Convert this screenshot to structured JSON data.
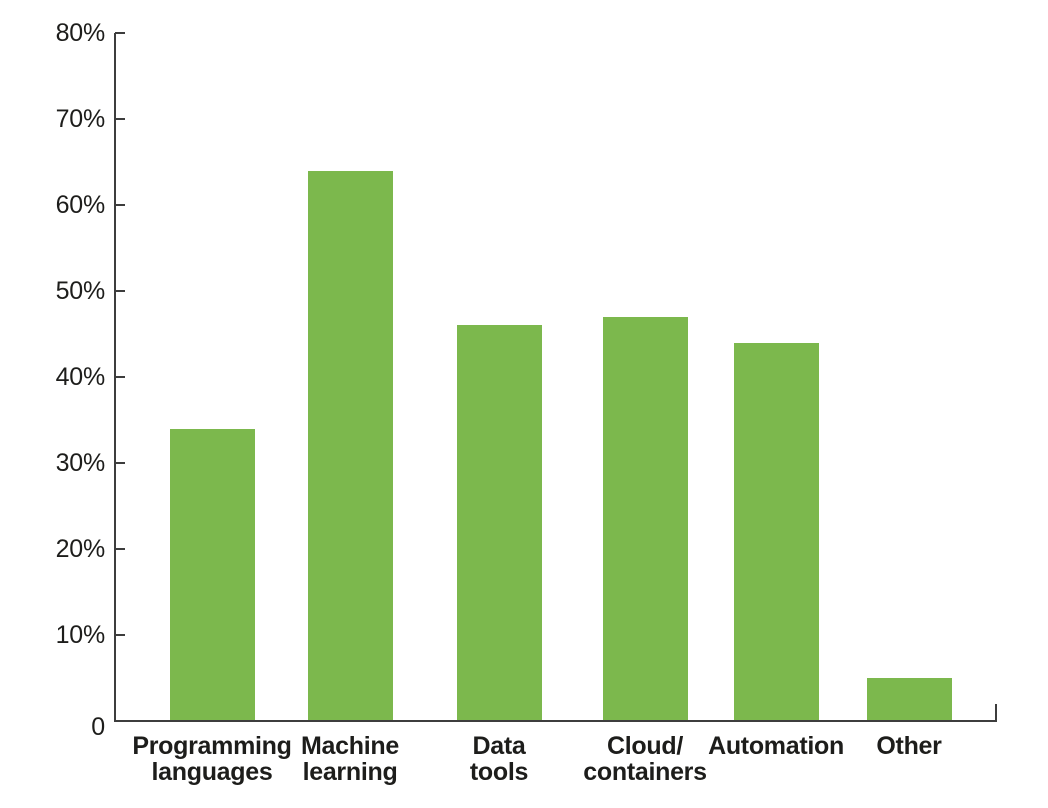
{
  "chart_data": {
    "type": "bar",
    "title": "",
    "xlabel": "",
    "ylabel": "",
    "categories": [
      "Programming languages",
      "Machine learning",
      "Data tools",
      "Cloud/containers",
      "Automation",
      "Other"
    ],
    "categories_display": [
      [
        "Programming",
        "languages"
      ],
      [
        "Machine",
        "learning"
      ],
      [
        "Data",
        "tools"
      ],
      [
        "Cloud/",
        "containers"
      ],
      [
        "Automation"
      ],
      [
        "Other"
      ]
    ],
    "values": [
      34,
      64,
      46,
      47,
      44,
      5
    ],
    "unit": "%",
    "ylim": [
      0,
      80
    ],
    "ytick_interval": 10,
    "ytick_labels": [
      "0",
      "10%",
      "20%",
      "30%",
      "40%",
      "50%",
      "60%",
      "70%",
      "80%"
    ],
    "grid": false,
    "legend": null,
    "colors": {
      "bar": "#7cb84d",
      "axis": "#3d3d3d",
      "text": "#1d1d1b",
      "background": "#ffffff"
    }
  }
}
